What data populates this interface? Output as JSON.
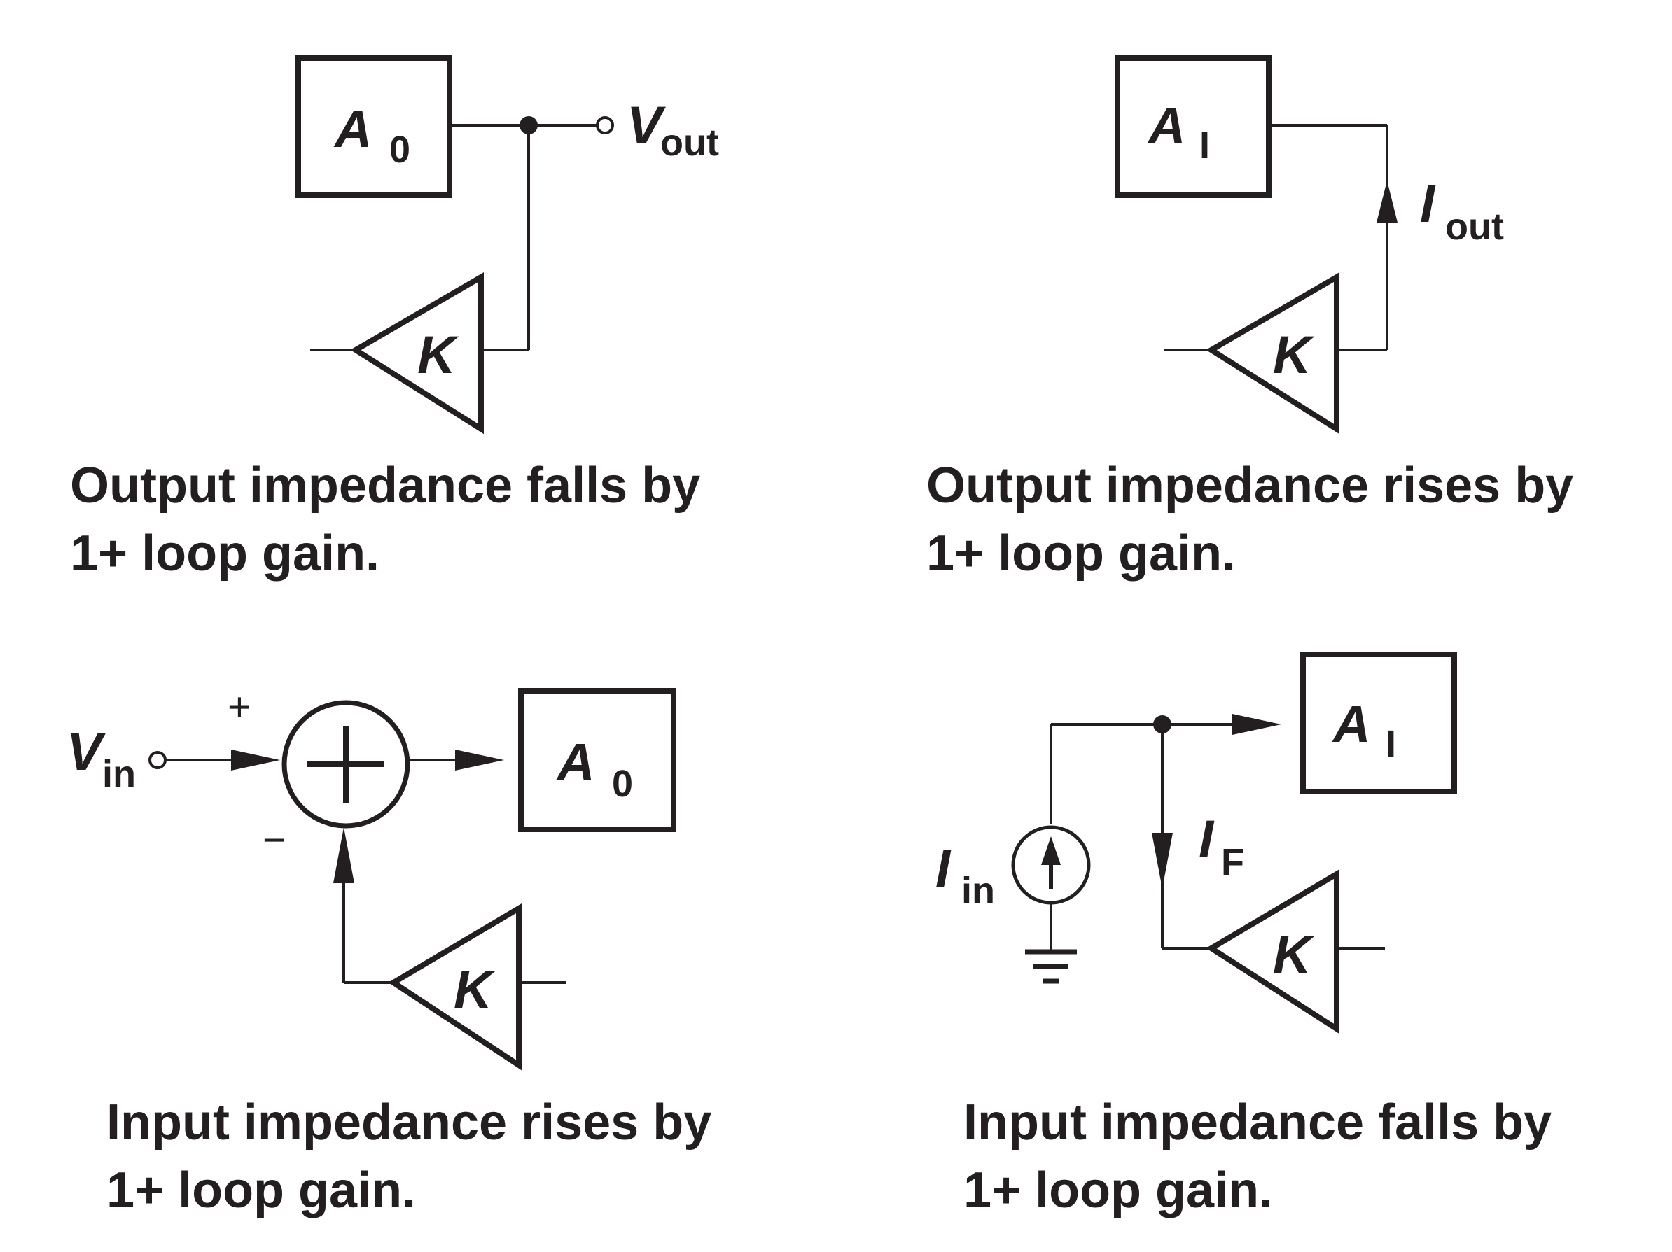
{
  "panels": {
    "top_left": {
      "amp": "A",
      "amp_sub": "0",
      "output": "V",
      "output_sub": "out",
      "feedback": "K",
      "caption_line1": "Output impedance falls by",
      "caption_line2": "1+ loop gain."
    },
    "top_right": {
      "amp": "A",
      "amp_sub": "I",
      "output": "I",
      "output_sub": "out",
      "feedback": "K",
      "caption_line1": "Output impedance rises by",
      "caption_line2": "1+ loop gain."
    },
    "bottom_left": {
      "input": "V",
      "input_sub": "in",
      "plus": "+",
      "minus": "−",
      "amp": "A",
      "amp_sub": "0",
      "feedback": "K",
      "caption_line1": "Input impedance rises by",
      "caption_line2": "1+ loop gain."
    },
    "bottom_right": {
      "input": "I",
      "input_sub": "in",
      "feedback_current": "I",
      "feedback_current_sub": "F",
      "amp": "A",
      "amp_sub": "I",
      "feedback": "K",
      "caption_line1": "Input impedance falls by",
      "caption_line2": "1+ loop gain."
    }
  }
}
